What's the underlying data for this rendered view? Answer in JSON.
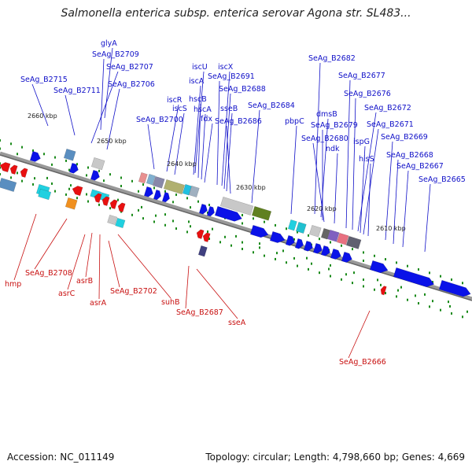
{
  "title": "Salmonella enterica subsp. enterica serovar Agona str. SL483...",
  "footer": {
    "accession": "Accession: NC_011149",
    "summary": "Topology: circular; Length: 4,798,660 bp; Genes: 4,669"
  },
  "colors": {
    "forward_gene": "#0a12e8",
    "reverse_gene": "#e81010",
    "backbone": "#888888",
    "tick": "#1a8a1a"
  },
  "kbp_ticks": [
    "2660 kbp",
    "2650 kbp",
    "2640 kbp",
    "2630 kbp",
    "2620 kbp",
    "2610 kbp"
  ],
  "forward_labels": [
    "SeAg_B2715",
    "SeAg_B2711",
    "glyA",
    "SeAg_B2709",
    "SeAg_B2707",
    "SeAg_B2706",
    "SeAg_B2700",
    "iscR",
    "iscS",
    "iscU",
    "iscA",
    "hscB",
    "hscA",
    "fdx",
    "iscX",
    "SeAg_B2691",
    "SeAg_B2688",
    "sseB",
    "SeAg_B2686",
    "SeAg_B2684",
    "pbpC",
    "SeAg_B2682",
    "dmsB",
    "SeAg_B2679",
    "SeAg_B2680",
    "ndk",
    "SeAg_B2677",
    "SeAg_B2676",
    "SeAg_B2672",
    "ispG",
    "SeAg_B2671",
    "hisS",
    "SeAg_B2669",
    "SeAg_B2668",
    "SeAg_B2667",
    "SeAg_B2665"
  ],
  "reverse_labels": [
    "hmp",
    "SeAg_B2708",
    "asrC",
    "asrB",
    "asrA",
    "SeAg_B2702",
    "suhB",
    "SeAg_B2687",
    "sseA",
    "SeAg_B2666"
  ]
}
